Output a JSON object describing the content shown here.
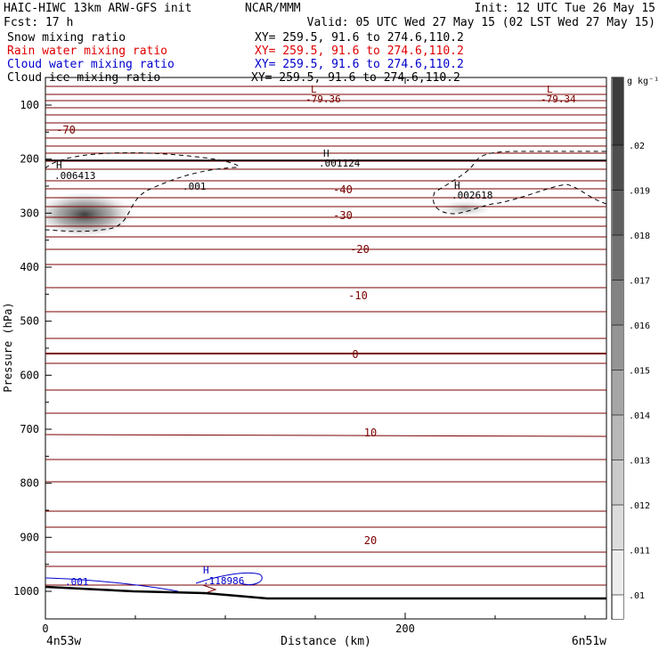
{
  "header": {
    "line1_left": "HAIC-HIWC 13km ARW-GFS init",
    "line1_center": "NCAR/MMM",
    "line1_right": "Init: 12 UTC Tue 26 May 15",
    "line2_left": "Fcst:    17 h",
    "line2_right": "Valid: 05 UTC Wed 27 May 15 (02 LST Wed 27 May 15)"
  },
  "fields": [
    {
      "name": "Snow mixing ratio",
      "xy": "XY= 259.5, 91.6 to 274.6,110.2",
      "color": "#000000"
    },
    {
      "name": "Rain water mixing ratio",
      "xy": "XY= 259.5, 91.6 to 274.6,110.2",
      "color": "#e00000"
    },
    {
      "name": "Cloud water mixing ratio",
      "xy": "XY= 259.5, 91.6 to 274.6,110.2",
      "color": "#0000cc"
    },
    {
      "name": "Cloud ice mixing ratio",
      "xy": "XY= 259.5, 91.6 to 274.6,110.2",
      "color": "#000000"
    }
  ],
  "chart_data": {
    "type": "contour cross-section",
    "xlabel": "Distance (km)",
    "ylabel": "Pressure (hPa)",
    "x_ticks": [
      0,
      200
    ],
    "x_range": [
      0,
      313
    ],
    "y_ticks": [
      100,
      200,
      300,
      400,
      500,
      600,
      700,
      800,
      900,
      1000
    ],
    "y_range": [
      1050,
      50
    ],
    "left_endpoint": "4n53w",
    "right_endpoint": "6n51w",
    "temperature_contours": {
      "color": "#7a0000",
      "labels": [
        {
          "text": "-70",
          "x": 18,
          "p": 145
        },
        {
          "text": "-40",
          "x": 165,
          "p": 257
        },
        {
          "text": "-30",
          "x": 165,
          "p": 309
        },
        {
          "text": "-20",
          "x": 175,
          "p": 368
        },
        {
          "text": "-10",
          "x": 172,
          "p": 445
        },
        {
          "text": "0",
          "x": 172,
          "p": 562
        },
        {
          "text": "10",
          "x": 180,
          "p": 708
        },
        {
          "text": "20",
          "x": 180,
          "p": 906
        }
      ],
      "extrema": [
        {
          "kind": "L",
          "value": "-79.36",
          "x": 148,
          "p": 90
        },
        {
          "kind": "L",
          "value": "-79.34",
          "x": 278,
          "p": 90
        }
      ]
    },
    "snow_extrema": [
      {
        "kind": "H",
        "value": ".006413",
        "x": 7,
        "p": 228
      },
      {
        "kind": "H",
        "value": ".001124",
        "x": 152,
        "p": 208
      },
      {
        "kind": "H",
        "value": ".002618",
        "x": 227,
        "p": 280
      }
    ],
    "snow_contour_label": ".001",
    "cloud_water_extrema": [
      {
        "kind": "H",
        "value": ".118986",
        "x": 88,
        "p": 988
      }
    ],
    "cloud_water_contour_label": ".001",
    "colorbar": {
      "unit": "g kg⁻¹",
      "ticks": [
        ".02",
        ".019",
        ".018",
        ".017",
        ".016",
        ".015",
        ".014",
        ".013",
        ".012",
        ".011",
        ".01"
      ]
    }
  }
}
